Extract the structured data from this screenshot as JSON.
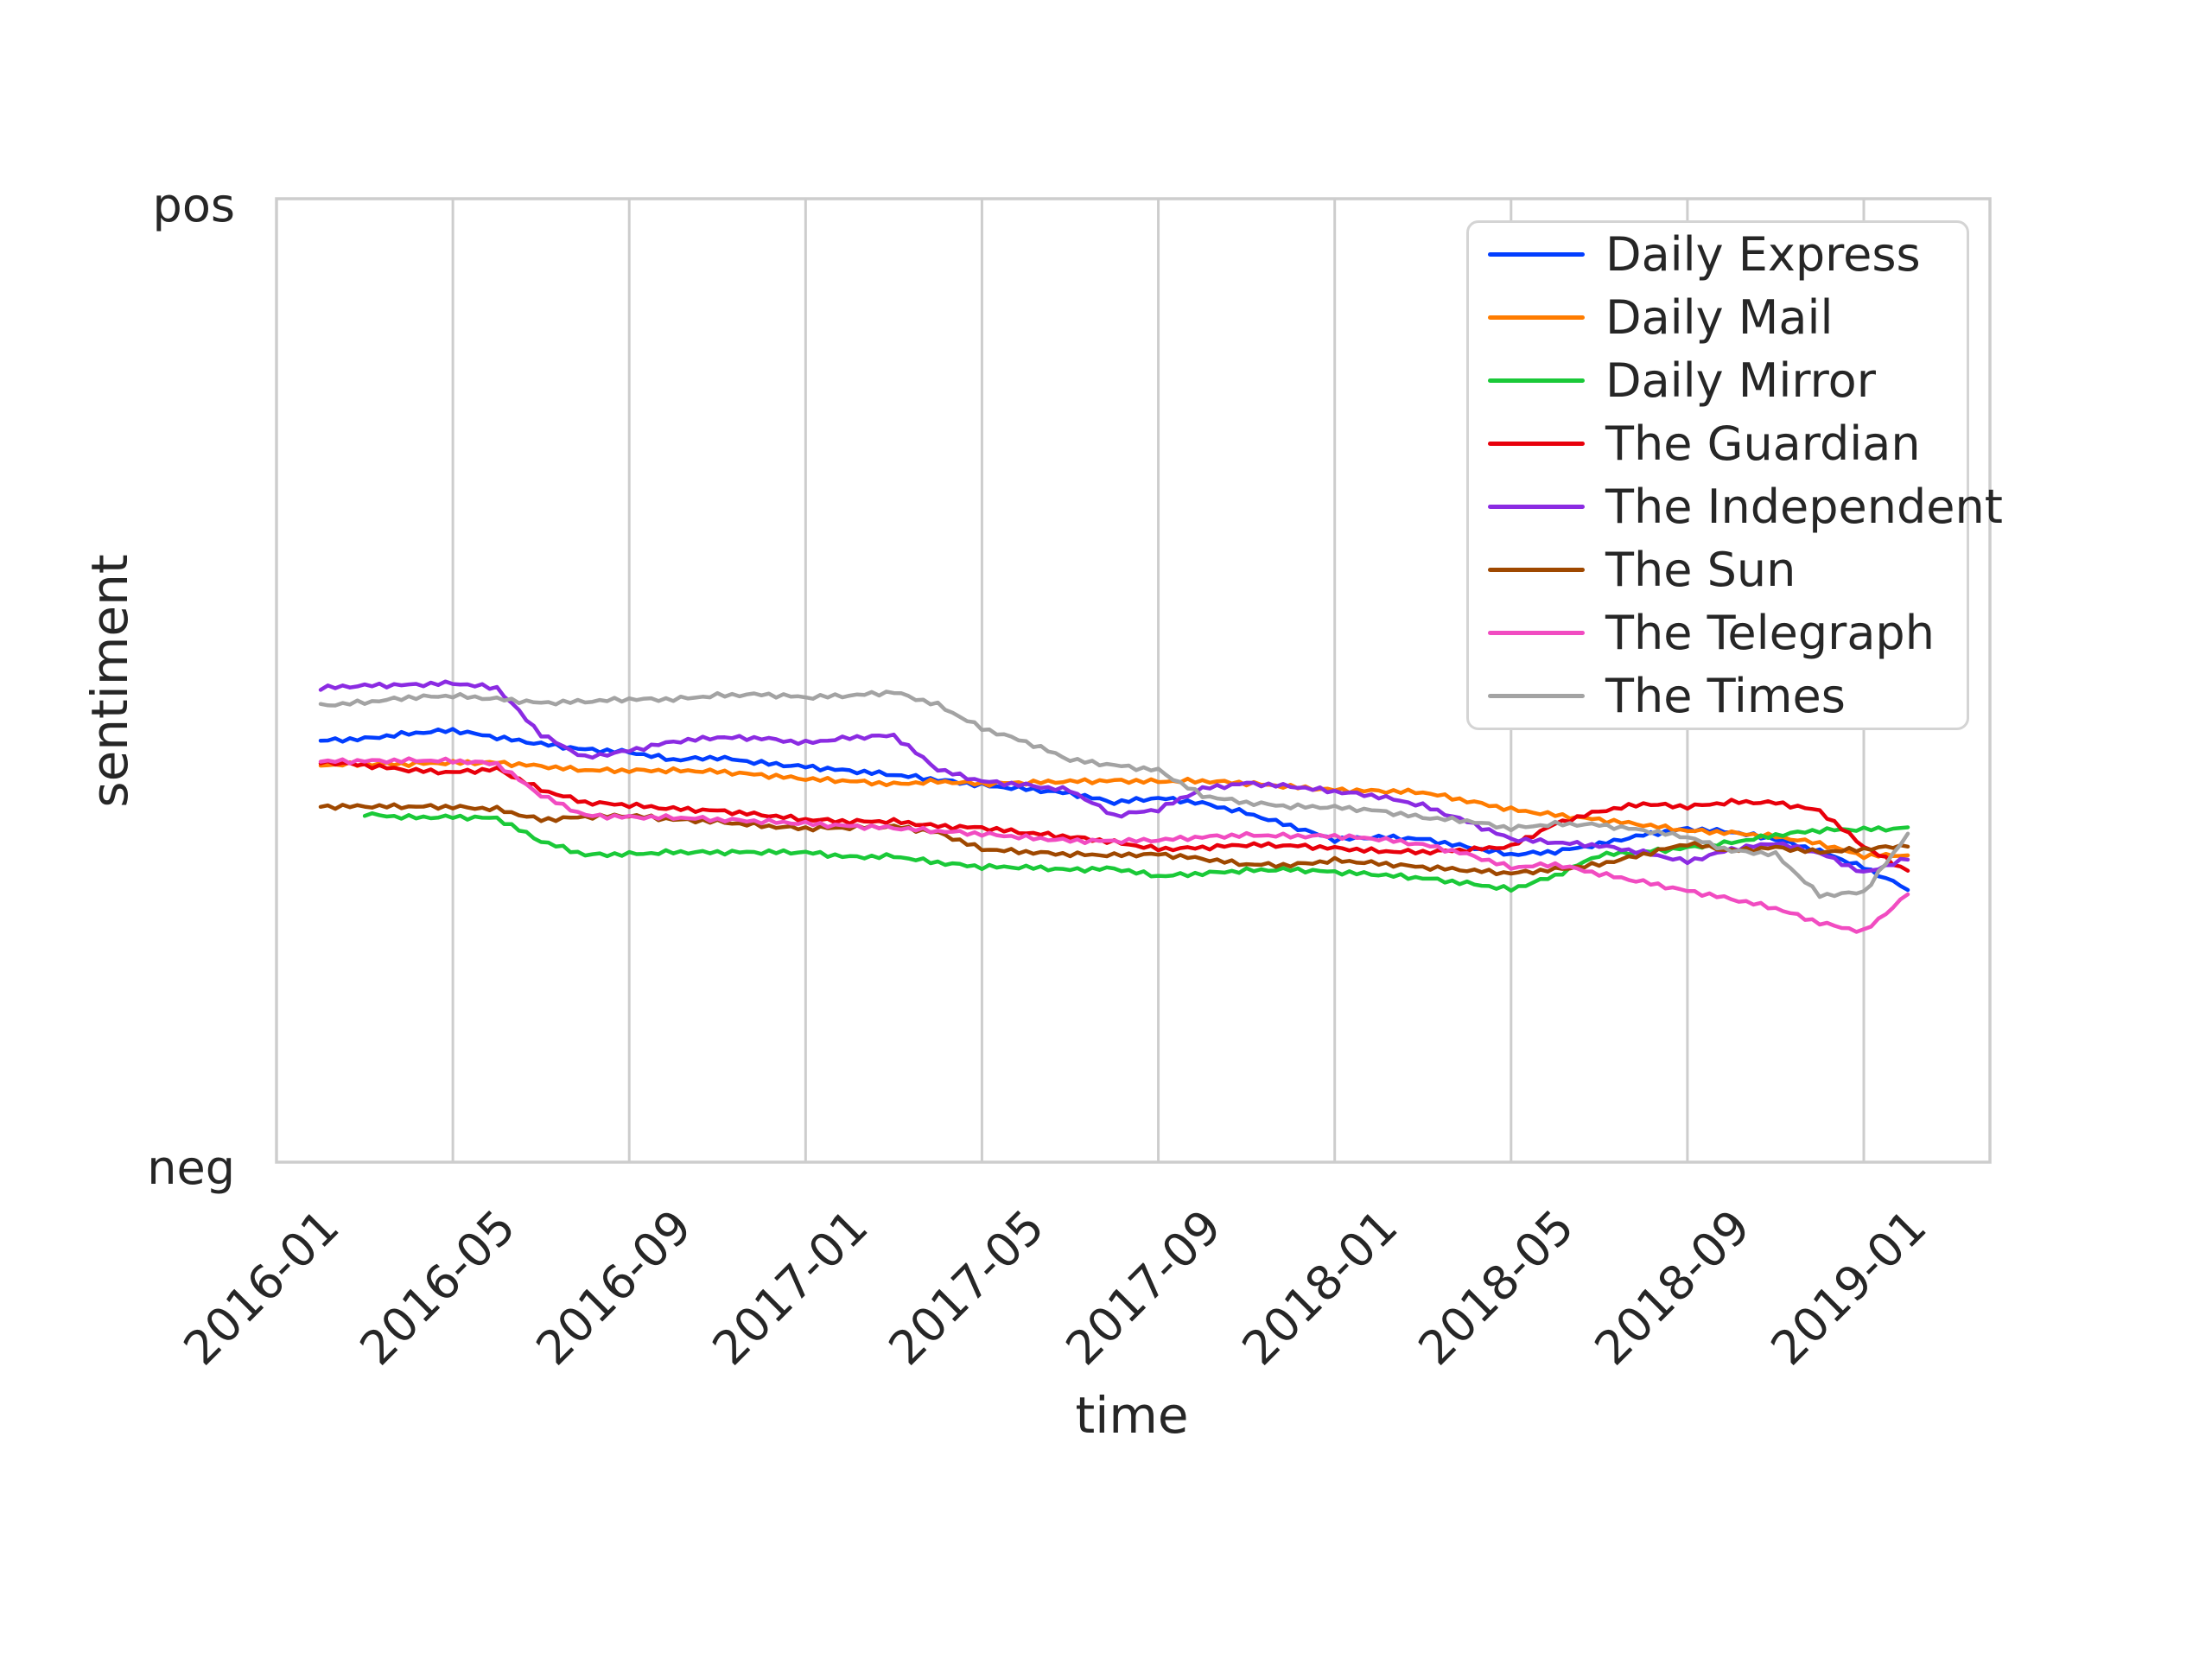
{
  "figure_title": "",
  "colors": {
    "background": "#ffffff",
    "grid": "#cdcdcd",
    "spine": "#cdcdcd",
    "text": "#262626",
    "legend_border": "#d4d4d4"
  },
  "chart_data": {
    "type": "line",
    "title": "",
    "xlabel": "time",
    "ylabel": "sentiment",
    "y_tick_labels": [
      "pos",
      "neg"
    ],
    "x_tick_labels": [
      "2016-01",
      "2016-05",
      "2016-09",
      "2017-01",
      "2017-05",
      "2017-09",
      "2018-01",
      "2018-05",
      "2018-09",
      "2019-01"
    ],
    "x_tick_interval_months": 4,
    "ylim": [
      -1,
      1
    ],
    "ylim_labels": {
      "top": "pos",
      "bottom": "neg"
    },
    "grid": "vertical-only",
    "legend_position": "upper right",
    "x": [
      "2016-02",
      "2016-03",
      "2016-04",
      "2016-05",
      "2016-06",
      "2016-07",
      "2016-08",
      "2016-09",
      "2016-10",
      "2016-11",
      "2016-12",
      "2017-01",
      "2017-02",
      "2017-03",
      "2017-04",
      "2017-05",
      "2017-06",
      "2017-07",
      "2017-08",
      "2017-09",
      "2017-10",
      "2017-11",
      "2017-12",
      "2018-01",
      "2018-02",
      "2018-03",
      "2018-04",
      "2018-05",
      "2018-06",
      "2018-07",
      "2018-08",
      "2018-09",
      "2018-10",
      "2018-11",
      "2018-12",
      "2019-01",
      "2019-02"
    ],
    "series": [
      {
        "name": "Daily Express",
        "color": "#023eff",
        "values": [
          -0.125,
          -0.123,
          -0.112,
          -0.103,
          -0.116,
          -0.13,
          -0.144,
          -0.151,
          -0.166,
          -0.159,
          -0.169,
          -0.178,
          -0.189,
          -0.198,
          -0.207,
          -0.216,
          -0.223,
          -0.234,
          -0.255,
          -0.246,
          -0.255,
          -0.273,
          -0.3,
          -0.331,
          -0.327,
          -0.331,
          -0.345,
          -0.359,
          -0.354,
          -0.341,
          -0.323,
          -0.309,
          -0.313,
          -0.327,
          -0.354,
          -0.39,
          -0.435
        ]
      },
      {
        "name": "Daily Mail",
        "color": "#ff7c00",
        "values": [
          -0.173,
          -0.173,
          -0.175,
          -0.173,
          -0.171,
          -0.176,
          -0.184,
          -0.187,
          -0.189,
          -0.191,
          -0.196,
          -0.202,
          -0.207,
          -0.216,
          -0.212,
          -0.216,
          -0.211,
          -0.207,
          -0.207,
          -0.211,
          -0.211,
          -0.214,
          -0.219,
          -0.225,
          -0.229,
          -0.234,
          -0.252,
          -0.268,
          -0.277,
          -0.287,
          -0.3,
          -0.314,
          -0.318,
          -0.323,
          -0.336,
          -0.363,
          -0.363
        ]
      },
      {
        "name": "Daily Mirror",
        "color": "#1ac938",
        "values": [
          null,
          -0.277,
          -0.282,
          -0.282,
          -0.287,
          -0.336,
          -0.363,
          -0.359,
          -0.354,
          -0.356,
          -0.358,
          -0.359,
          -0.367,
          -0.363,
          -0.376,
          -0.387,
          -0.39,
          -0.395,
          -0.39,
          -0.404,
          -0.399,
          -0.395,
          -0.395,
          -0.399,
          -0.402,
          -0.408,
          -0.42,
          -0.435,
          -0.408,
          -0.363,
          -0.354,
          -0.345,
          -0.336,
          -0.323,
          -0.313,
          -0.309,
          -0.305
        ]
      },
      {
        "name": "The Guardian",
        "color": "#e8000b",
        "values": [
          -0.171,
          -0.176,
          -0.184,
          -0.189,
          -0.184,
          -0.229,
          -0.255,
          -0.258,
          -0.264,
          -0.269,
          -0.28,
          -0.291,
          -0.294,
          -0.291,
          -0.3,
          -0.305,
          -0.318,
          -0.327,
          -0.336,
          -0.348,
          -0.345,
          -0.341,
          -0.345,
          -0.35,
          -0.354,
          -0.354,
          -0.35,
          -0.345,
          -0.3,
          -0.273,
          -0.255,
          -0.26,
          -0.251,
          -0.255,
          -0.273,
          -0.345,
          -0.395
        ]
      },
      {
        "name": "The Independent",
        "color": "#8b2be2",
        "values": [
          -0.017,
          -0.013,
          -0.01,
          -0.004,
          -0.013,
          -0.112,
          -0.162,
          -0.148,
          -0.127,
          -0.116,
          -0.118,
          -0.13,
          -0.121,
          -0.116,
          -0.184,
          -0.207,
          -0.216,
          -0.229,
          -0.283,
          -0.269,
          -0.223,
          -0.211,
          -0.219,
          -0.232,
          -0.243,
          -0.26,
          -0.291,
          -0.327,
          -0.336,
          -0.345,
          -0.359,
          -0.376,
          -0.348,
          -0.336,
          -0.359,
          -0.402,
          -0.372
        ]
      },
      {
        "name": "The Sun",
        "color": "#9f4800",
        "values": [
          -0.26,
          -0.262,
          -0.264,
          -0.264,
          -0.266,
          -0.287,
          -0.282,
          -0.282,
          -0.291,
          -0.294,
          -0.3,
          -0.305,
          -0.305,
          -0.305,
          -0.318,
          -0.35,
          -0.354,
          -0.359,
          -0.363,
          -0.363,
          -0.372,
          -0.381,
          -0.381,
          -0.372,
          -0.381,
          -0.39,
          -0.395,
          -0.399,
          -0.39,
          -0.381,
          -0.363,
          -0.341,
          -0.354,
          -0.345,
          -0.354,
          -0.35,
          -0.345
        ]
      },
      {
        "name": "The Telegraph",
        "color": "#f14cc1",
        "values": [
          -0.166,
          -0.165,
          -0.166,
          -0.169,
          -0.175,
          -0.238,
          -0.278,
          -0.282,
          -0.285,
          -0.291,
          -0.294,
          -0.296,
          -0.3,
          -0.305,
          -0.314,
          -0.321,
          -0.327,
          -0.331,
          -0.331,
          -0.331,
          -0.327,
          -0.323,
          -0.323,
          -0.321,
          -0.327,
          -0.341,
          -0.363,
          -0.39,
          -0.381,
          -0.399,
          -0.417,
          -0.438,
          -0.456,
          -0.474,
          -0.502,
          -0.519,
          -0.444
        ]
      },
      {
        "name": "The Times",
        "color": "#a3a3a3",
        "values": [
          -0.053,
          -0.044,
          -0.033,
          -0.031,
          -0.04,
          -0.049,
          -0.044,
          -0.037,
          -0.037,
          -0.031,
          -0.031,
          -0.037,
          -0.031,
          -0.022,
          -0.049,
          -0.1,
          -0.13,
          -0.166,
          -0.175,
          -0.184,
          -0.238,
          -0.255,
          -0.264,
          -0.264,
          -0.269,
          -0.282,
          -0.291,
          -0.309,
          -0.3,
          -0.3,
          -0.309,
          -0.323,
          -0.354,
          -0.363,
          -0.448,
          -0.439,
          -0.318
        ]
      }
    ]
  }
}
